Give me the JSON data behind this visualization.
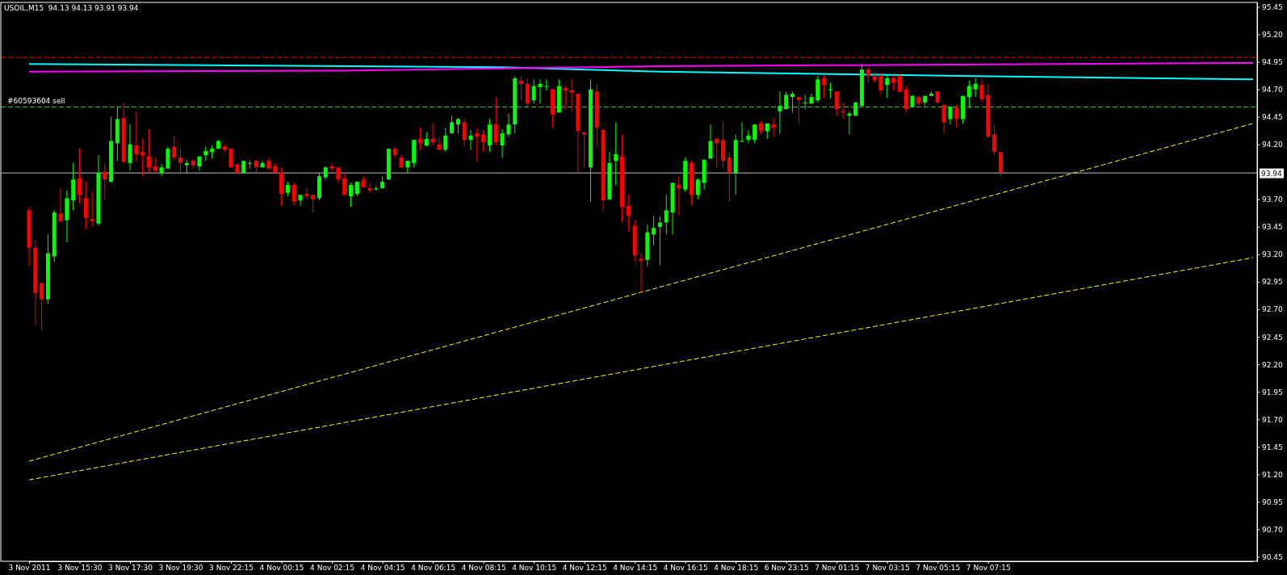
{
  "chart_data": {
    "type": "candlestick",
    "title": "USOIL,M15  94.13 94.13 93.91 93.94",
    "categories": [
      "3 Nov 2011",
      null,
      null,
      null,
      null,
      null,
      null,
      null,
      "3 Nov 15:30",
      null,
      null,
      null,
      null,
      null,
      null,
      null,
      "3 Nov 17:30",
      null,
      null,
      null,
      null,
      null,
      null,
      null,
      "3 Nov 19:30",
      null,
      null,
      null,
      null,
      null,
      null,
      null,
      "3 Nov 22:15",
      null,
      null,
      null,
      null,
      null,
      null,
      null,
      "4 Nov 00:15",
      null,
      null,
      null,
      null,
      null,
      null,
      null,
      "4 Nov 02:15",
      null,
      null,
      null,
      null,
      null,
      null,
      null,
      "4 Nov 04:15",
      null,
      null,
      null,
      null,
      null,
      null,
      null,
      "4 Nov 06:15",
      null,
      null,
      null,
      null,
      null,
      null,
      null,
      "4 Nov 08:15",
      null,
      null,
      null,
      null,
      null,
      null,
      null,
      "4 Nov 10:15",
      null,
      null,
      null,
      null,
      null,
      null,
      null,
      "4 Nov 12:15",
      null,
      null,
      null,
      null,
      null,
      null,
      null,
      "4 Nov 14:15",
      null,
      null,
      null,
      null,
      null,
      null,
      null,
      "4 Nov 16:15",
      null,
      null,
      null,
      null,
      null,
      null,
      null,
      "4 Nov 18:15",
      null,
      null,
      null,
      null,
      null,
      null,
      null,
      "6 Nov 23:15",
      null,
      null,
      null,
      null,
      null,
      null,
      null,
      "7 Nov 01:15",
      null,
      null,
      null,
      null,
      null,
      null,
      null,
      "7 Nov 03:15",
      null,
      null,
      null,
      null,
      null,
      null,
      null,
      "7 Nov 05:15",
      null,
      null,
      null,
      null,
      null,
      null,
      null,
      "7 Nov 07:15",
      null,
      null,
      null,
      null,
      null,
      null,
      null,
      null,
      null,
      null,
      null,
      null,
      null,
      null,
      null,
      null,
      null,
      null,
      null,
      null,
      null,
      null,
      null,
      null,
      null,
      null,
      null,
      null,
      null,
      null,
      null,
      null,
      null,
      null,
      null,
      null,
      null,
      null,
      null,
      null,
      null,
      null
    ],
    "ohlc": [
      [
        93.6,
        93.63,
        93.09,
        93.26
      ],
      [
        93.26,
        93.33,
        92.56,
        92.85
      ],
      [
        92.94,
        92.94,
        92.51,
        92.79
      ],
      [
        92.79,
        93.38,
        92.75,
        93.21
      ],
      [
        93.18,
        93.6,
        93.13,
        93.58
      ],
      [
        93.57,
        93.8,
        93.49,
        93.5
      ],
      [
        93.51,
        93.78,
        93.31,
        93.71
      ],
      [
        93.69,
        94.03,
        93.6,
        93.88
      ],
      [
        93.89,
        94.16,
        93.66,
        93.74
      ],
      [
        93.71,
        93.86,
        93.43,
        93.53
      ],
      [
        93.52,
        93.77,
        93.45,
        93.5
      ],
      [
        93.48,
        94.1,
        93.46,
        93.94
      ],
      [
        93.95,
        94.03,
        93.69,
        93.88
      ],
      [
        93.86,
        94.45,
        93.85,
        94.23
      ],
      [
        94.21,
        94.55,
        94.05,
        94.43
      ],
      [
        94.44,
        94.58,
        94.03,
        94.04
      ],
      [
        94.03,
        94.38,
        93.96,
        94.2
      ],
      [
        94.19,
        94.49,
        94.05,
        94.11
      ],
      [
        94.13,
        94.25,
        93.91,
        94.1
      ],
      [
        94.09,
        94.34,
        93.94,
        93.99
      ],
      [
        94.0,
        94.08,
        93.94,
        93.96
      ],
      [
        93.94,
        94.02,
        93.91,
        93.99
      ],
      [
        93.98,
        94.18,
        93.98,
        94.16
      ],
      [
        94.18,
        94.28,
        94.05,
        94.08
      ],
      [
        94.08,
        94.16,
        93.94,
        94.03
      ],
      [
        94.01,
        94.06,
        93.94,
        94.03
      ],
      [
        94.05,
        94.06,
        93.98,
        94.01
      ],
      [
        94.0,
        94.09,
        93.96,
        94.09
      ],
      [
        94.1,
        94.18,
        94.05,
        94.14
      ],
      [
        94.13,
        94.19,
        94.07,
        94.16
      ],
      [
        94.16,
        94.24,
        94.16,
        94.23
      ],
      [
        94.18,
        94.2,
        94.13,
        94.15
      ],
      [
        94.16,
        94.16,
        93.99,
        93.99
      ],
      [
        94.02,
        94.02,
        93.93,
        93.94
      ],
      [
        93.94,
        94.05,
        93.94,
        94.05
      ],
      [
        94.03,
        94.05,
        93.98,
        94.03
      ],
      [
        94.05,
        94.06,
        93.94,
        93.99
      ],
      [
        93.99,
        94.05,
        93.99,
        94.03
      ],
      [
        94.05,
        94.08,
        93.98,
        93.98
      ],
      [
        94.0,
        94.03,
        93.94,
        93.94
      ],
      [
        93.94,
        93.99,
        93.64,
        93.75
      ],
      [
        93.76,
        93.86,
        93.73,
        93.83
      ],
      [
        93.83,
        93.85,
        93.65,
        93.68
      ],
      [
        93.69,
        93.74,
        93.64,
        93.74
      ],
      [
        93.75,
        93.8,
        93.7,
        93.73
      ],
      [
        93.74,
        93.74,
        93.58,
        93.7
      ],
      [
        93.71,
        93.94,
        93.69,
        93.91
      ],
      [
        93.9,
        94.0,
        93.88,
        93.99
      ],
      [
        94.0,
        94.03,
        93.94,
        93.98
      ],
      [
        93.99,
        93.99,
        93.85,
        93.88
      ],
      [
        93.89,
        93.94,
        93.74,
        93.74
      ],
      [
        93.73,
        93.85,
        93.63,
        93.83
      ],
      [
        93.75,
        93.86,
        93.73,
        93.86
      ],
      [
        93.88,
        93.91,
        93.81,
        93.81
      ],
      [
        93.8,
        93.85,
        93.76,
        93.78
      ],
      [
        93.79,
        93.82,
        93.78,
        93.8
      ],
      [
        93.8,
        93.91,
        93.8,
        93.86
      ],
      [
        93.88,
        94.16,
        93.88,
        94.16
      ],
      [
        94.16,
        94.18,
        94.08,
        94.1
      ],
      [
        94.08,
        94.11,
        93.99,
        93.99
      ],
      [
        93.99,
        94.05,
        93.94,
        94.05
      ],
      [
        94.03,
        94.24,
        93.99,
        94.24
      ],
      [
        94.25,
        94.35,
        94.15,
        94.21
      ],
      [
        94.19,
        94.31,
        94.18,
        94.25
      ],
      [
        94.25,
        94.39,
        94.19,
        94.22
      ],
      [
        94.2,
        94.26,
        94.15,
        94.15
      ],
      [
        94.15,
        94.35,
        94.13,
        94.28
      ],
      [
        94.3,
        94.46,
        94.3,
        94.4
      ],
      [
        94.38,
        94.44,
        94.3,
        94.43
      ],
      [
        94.4,
        94.43,
        94.18,
        94.24
      ],
      [
        94.24,
        94.33,
        94.15,
        94.28
      ],
      [
        94.3,
        94.35,
        94.04,
        94.27
      ],
      [
        94.29,
        94.33,
        94.13,
        94.22
      ],
      [
        94.19,
        94.43,
        94.13,
        94.38
      ],
      [
        94.38,
        94.63,
        94.19,
        94.22
      ],
      [
        94.19,
        94.34,
        94.08,
        94.3
      ],
      [
        94.29,
        94.48,
        94.27,
        94.38
      ],
      [
        94.38,
        94.82,
        94.3,
        94.8
      ],
      [
        94.78,
        94.82,
        94.6,
        94.75
      ],
      [
        94.75,
        94.8,
        94.55,
        94.57
      ],
      [
        94.6,
        94.79,
        94.57,
        94.73
      ],
      [
        94.72,
        94.79,
        94.57,
        94.75
      ],
      [
        94.73,
        94.79,
        94.69,
        94.73
      ],
      [
        94.7,
        94.7,
        94.35,
        94.47
      ],
      [
        94.49,
        94.79,
        94.49,
        94.73
      ],
      [
        94.71,
        94.73,
        94.52,
        94.69
      ],
      [
        94.69,
        94.79,
        94.5,
        94.67
      ],
      [
        94.66,
        94.66,
        93.94,
        94.32
      ],
      [
        94.31,
        94.31,
        93.99,
        94.29
      ],
      [
        93.99,
        94.79,
        93.68,
        94.7
      ],
      [
        94.68,
        94.75,
        94.18,
        94.35
      ],
      [
        94.33,
        94.35,
        93.6,
        93.69
      ],
      [
        93.7,
        94.13,
        93.69,
        94.03
      ],
      [
        94.05,
        94.4,
        93.83,
        94.11
      ],
      [
        94.09,
        94.29,
        93.49,
        93.63
      ],
      [
        93.64,
        93.74,
        93.41,
        93.55
      ],
      [
        93.46,
        93.51,
        93.13,
        93.19
      ],
      [
        93.16,
        93.21,
        92.85,
        93.14
      ],
      [
        93.15,
        93.47,
        93.09,
        93.4
      ],
      [
        93.38,
        93.55,
        93.28,
        93.44
      ],
      [
        93.45,
        93.55,
        93.1,
        93.49
      ],
      [
        93.49,
        93.74,
        93.38,
        93.6
      ],
      [
        93.58,
        93.85,
        93.38,
        93.85
      ],
      [
        93.83,
        93.91,
        93.55,
        93.8
      ],
      [
        93.79,
        94.08,
        93.77,
        94.05
      ],
      [
        94.03,
        94.05,
        93.65,
        93.74
      ],
      [
        93.74,
        93.89,
        93.7,
        93.88
      ],
      [
        93.85,
        94.06,
        93.79,
        94.06
      ],
      [
        94.07,
        94.38,
        94.07,
        94.23
      ],
      [
        94.25,
        94.26,
        93.98,
        94.21
      ],
      [
        94.24,
        94.41,
        93.99,
        94.05
      ],
      [
        94.08,
        94.13,
        93.68,
        93.94
      ],
      [
        93.94,
        94.29,
        93.74,
        94.24
      ],
      [
        94.23,
        94.4,
        94.22,
        94.23
      ],
      [
        94.24,
        94.33,
        94.21,
        94.28
      ],
      [
        94.24,
        94.38,
        94.21,
        94.38
      ],
      [
        94.39,
        94.41,
        94.29,
        94.32
      ],
      [
        94.32,
        94.39,
        94.25,
        94.39
      ],
      [
        94.38,
        94.44,
        94.27,
        94.35
      ],
      [
        94.5,
        94.68,
        94.3,
        94.55
      ],
      [
        94.52,
        94.68,
        94.52,
        94.65
      ],
      [
        94.63,
        94.68,
        94.49,
        94.66
      ],
      [
        94.63,
        94.63,
        94.39,
        94.6
      ],
      [
        94.58,
        94.65,
        94.52,
        94.58
      ],
      [
        94.57,
        94.66,
        94.57,
        94.63
      ],
      [
        94.6,
        94.82,
        94.58,
        94.79
      ],
      [
        94.8,
        94.83,
        94.62,
        94.74
      ],
      [
        94.7,
        94.76,
        94.62,
        94.7
      ],
      [
        94.68,
        94.68,
        94.46,
        94.52
      ],
      [
        94.5,
        94.58,
        94.43,
        94.49
      ],
      [
        94.46,
        94.5,
        94.29,
        94.48
      ],
      [
        94.46,
        94.59,
        94.46,
        94.58
      ],
      [
        94.55,
        94.93,
        94.55,
        94.88
      ],
      [
        94.88,
        94.9,
        94.76,
        94.82
      ],
      [
        94.82,
        94.86,
        94.76,
        94.78
      ],
      [
        94.82,
        94.85,
        94.65,
        94.69
      ],
      [
        94.74,
        94.83,
        94.62,
        94.8
      ],
      [
        94.8,
        94.83,
        94.69,
        94.76
      ],
      [
        94.82,
        94.84,
        94.67,
        94.68
      ],
      [
        94.7,
        94.73,
        94.49,
        94.52
      ],
      [
        94.54,
        94.65,
        94.54,
        94.64
      ],
      [
        94.63,
        94.64,
        94.53,
        94.57
      ],
      [
        94.58,
        94.64,
        94.55,
        94.64
      ],
      [
        94.64,
        94.68,
        94.64,
        94.66
      ],
      [
        94.68,
        94.68,
        94.58,
        94.58
      ],
      [
        94.56,
        94.56,
        94.3,
        94.4
      ],
      [
        94.43,
        94.55,
        94.38,
        94.54
      ],
      [
        94.53,
        94.56,
        94.35,
        94.43
      ],
      [
        94.43,
        94.64,
        94.39,
        94.64
      ],
      [
        94.63,
        94.78,
        94.53,
        94.73
      ],
      [
        94.7,
        94.8,
        94.63,
        94.75
      ],
      [
        94.74,
        94.79,
        94.58,
        94.61
      ],
      [
        94.65,
        94.75,
        94.25,
        94.27
      ],
      [
        94.29,
        94.38,
        94.1,
        94.13
      ],
      [
        94.13,
        94.13,
        93.91,
        93.94
      ],
      null,
      null,
      null,
      null,
      null,
      null,
      null,
      null,
      null,
      null,
      null,
      null,
      null,
      null,
      null,
      null,
      null,
      null,
      null,
      null,
      null,
      null,
      null,
      null,
      null,
      null,
      null,
      null,
      null,
      null,
      null,
      null,
      null,
      null,
      null,
      null,
      null,
      null,
      null,
      null
    ],
    "colors": [
      "#ff0000",
      "#ff0000",
      "#ff0000",
      "#00ff00",
      "#00ff00",
      "#ff0000",
      "#00ff00",
      "#00ff00",
      "#ff0000",
      "#ff0000",
      "#ff0000",
      "#00ff00",
      "#ff0000",
      "#00ff00",
      "#00ff00",
      "#ff0000",
      "#00ff00",
      "#ff0000",
      "#ff0000",
      "#ff0000",
      "#ff0000",
      "#00ff00",
      "#00ff00",
      "#ff0000",
      "#ff0000",
      "#00ff00",
      "#ff0000",
      "#00ff00",
      "#00ff00",
      "#00ff00",
      "#00ff00",
      "#ff0000",
      "#ff0000",
      "#ff0000",
      "#00ff00",
      "#00ff00",
      "#ff0000",
      "#00ff00",
      "#ff0000",
      "#ff0000",
      "#ff0000",
      "#00ff00",
      "#ff0000",
      "#00ff00",
      "#ff0000",
      "#ff0000",
      "#00ff00",
      "#00ff00",
      "#ff0000",
      "#ff0000",
      "#ff0000",
      "#00ff00",
      "#00ff00",
      "#ff0000",
      "#ff0000",
      "#00ff00",
      "#00ff00",
      "#00ff00",
      "#ff0000",
      "#ff0000",
      "#00ff00",
      "#00ff00",
      "#ff0000",
      "#00ff00",
      "#ff0000",
      "#ff0000",
      "#00ff00",
      "#00ff00",
      "#00ff00",
      "#ff0000",
      "#00ff00",
      "#ff0000",
      "#ff0000",
      "#00ff00",
      "#ff0000",
      "#00ff00",
      "#00ff00",
      "#00ff00",
      "#ff0000",
      "#ff0000",
      "#00ff00",
      "#00ff00",
      "#00ff00",
      "#ff0000",
      "#00ff00",
      "#ff0000",
      "#ff0000",
      "#ff0000",
      "#ff0000",
      "#00ff00",
      "#ff0000",
      "#ff0000",
      "#00ff00",
      "#00ff00",
      "#ff0000",
      "#ff0000",
      "#ff0000",
      "#ff0000",
      "#00ff00",
      "#00ff00",
      "#00ff00",
      "#00ff00",
      "#00ff00",
      "#ff0000",
      "#00ff00",
      "#ff0000",
      "#00ff00",
      "#00ff00",
      "#00ff00",
      "#ff0000",
      "#ff0000",
      "#ff0000",
      "#00ff00",
      "#00ff00",
      "#00ff00",
      "#00ff00",
      "#ff0000",
      "#00ff00",
      "#ff0000",
      "#00ff00",
      "#00ff00",
      "#00ff00",
      "#ff0000",
      "#00ff00",
      "#00ff00",
      "#00ff00",
      "#ff0000",
      "#00ff00",
      "#ff0000",
      "#ff0000",
      "#00ff00",
      "#00ff00",
      "#00ff00",
      "#ff0000",
      "#ff0000",
      "#ff0000",
      "#00ff00",
      "#ff0000",
      "#ff0000",
      "#ff0000",
      "#00ff00",
      "#ff0000",
      "#00ff00",
      "#00ff00",
      "#ff0000",
      "#ff0000",
      "#00ff00",
      "#ff0000",
      "#00ff00",
      "#00ff00",
      "#00ff00",
      "#ff0000",
      "#ff0000",
      "#ff0000",
      "#ff0000",
      null,
      null,
      null,
      null,
      null,
      null,
      null,
      null,
      null,
      null,
      null,
      null,
      null,
      null,
      null,
      null,
      null,
      null,
      null,
      null,
      null,
      null,
      null,
      null,
      null,
      null,
      null,
      null,
      null,
      null,
      null,
      null,
      null,
      null,
      null,
      null,
      null,
      null,
      null,
      null
    ],
    "series": [
      {
        "type": "line",
        "color": "#ffff00",
        "line_style": "dashed",
        "values": [
          91.32,
          null,
          null,
          null,
          null,
          null,
          null,
          null,
          null,
          null,
          null,
          null,
          null,
          null,
          null,
          null,
          null,
          null,
          null,
          null,
          null,
          null,
          null,
          null,
          null,
          null,
          null,
          null,
          null,
          null,
          null,
          null,
          null,
          null,
          null,
          null,
          null,
          null,
          null,
          null,
          null,
          null,
          null,
          null,
          null,
          null,
          null,
          null,
          null,
          null,
          null,
          null,
          null,
          null,
          null,
          null,
          null,
          null,
          null,
          null,
          null,
          null,
          null,
          null,
          null,
          null,
          null,
          null,
          null,
          null,
          null,
          null,
          null,
          null,
          null,
          null,
          null,
          null,
          null,
          null,
          null,
          null,
          null,
          null,
          null,
          null,
          null,
          null,
          null,
          null,
          null,
          null,
          null,
          null,
          null,
          null,
          null,
          null,
          null,
          null,
          null,
          null,
          null,
          null,
          null,
          null,
          null,
          null,
          null,
          null,
          null,
          null,
          null,
          null,
          null,
          null,
          null,
          null,
          null,
          null,
          null,
          null,
          null,
          null,
          null,
          null,
          null,
          null,
          null,
          null,
          null,
          null,
          null,
          null,
          null,
          null,
          null,
          null,
          null,
          null,
          null,
          null,
          null,
          null,
          null,
          null,
          null,
          null,
          null,
          null,
          null,
          null,
          null,
          null,
          null,
          null,
          null,
          null,
          null,
          null,
          null,
          null,
          null,
          null,
          null,
          null,
          null,
          null,
          null,
          null,
          null,
          null,
          null,
          null,
          null,
          null,
          null,
          null,
          null,
          null,
          null,
          null,
          null,
          null,
          null,
          null,
          null,
          null,
          null,
          null,
          null,
          null,
          null,
          null,
          94.39
        ]
      },
      {
        "type": "line",
        "color": "#ffff00",
        "line_style": "dashed",
        "values": [
          91.15,
          null,
          null,
          null,
          null,
          null,
          null,
          null,
          null,
          null,
          null,
          null,
          null,
          null,
          null,
          null,
          null,
          null,
          null,
          null,
          null,
          null,
          null,
          null,
          null,
          null,
          null,
          null,
          null,
          null,
          null,
          null,
          null,
          null,
          null,
          null,
          null,
          null,
          null,
          null,
          null,
          null,
          null,
          null,
          null,
          null,
          null,
          null,
          null,
          null,
          null,
          null,
          null,
          null,
          null,
          null,
          null,
          null,
          null,
          null,
          null,
          null,
          null,
          null,
          null,
          null,
          null,
          null,
          null,
          null,
          null,
          null,
          null,
          null,
          null,
          null,
          null,
          null,
          null,
          null,
          null,
          null,
          null,
          null,
          null,
          null,
          null,
          null,
          null,
          null,
          null,
          null,
          null,
          null,
          null,
          null,
          null,
          null,
          null,
          null,
          null,
          null,
          null,
          null,
          null,
          null,
          null,
          null,
          null,
          null,
          null,
          null,
          null,
          null,
          null,
          null,
          null,
          null,
          null,
          null,
          null,
          null,
          null,
          null,
          null,
          null,
          null,
          null,
          null,
          null,
          null,
          null,
          null,
          null,
          null,
          null,
          null,
          null,
          null,
          null,
          null,
          null,
          null,
          null,
          null,
          null,
          null,
          null,
          null,
          null,
          null,
          null,
          null,
          null,
          null,
          null,
          null,
          null,
          null,
          null,
          null,
          null,
          null,
          null,
          null,
          null,
          null,
          null,
          null,
          null,
          null,
          null,
          null,
          null,
          null,
          null,
          null,
          null,
          null,
          null,
          null,
          null,
          null,
          null,
          null,
          null,
          null,
          null,
          null,
          null,
          null,
          null,
          null,
          null,
          93.17
        ]
      },
      {
        "type": "line",
        "color": "#00ffff",
        "line_style": "solid",
        "values": [
          94.93,
          null,
          null,
          null,
          null,
          null,
          null,
          null,
          null,
          null,
          null,
          null,
          null,
          null,
          null,
          null,
          null,
          null,
          null,
          null,
          null,
          null,
          null,
          null,
          null,
          null,
          null,
          null,
          null,
          null,
          null,
          null,
          null,
          null,
          null,
          null,
          null,
          null,
          null,
          null,
          null,
          null,
          null,
          null,
          null,
          null,
          null,
          null,
          null,
          null,
          null,
          null,
          null,
          null,
          null,
          null,
          null,
          null,
          null,
          null,
          null,
          null,
          null,
          null,
          null,
          null,
          null,
          null,
          null,
          null,
          null,
          null,
          null,
          null,
          null,
          94.9,
          null,
          null,
          null,
          null,
          null,
          null,
          null,
          null,
          null,
          null,
          null,
          null,
          null,
          null,
          null,
          null,
          null,
          null,
          null,
          null,
          null,
          null,
          null,
          null,
          94.86,
          null,
          null,
          null,
          null,
          null,
          null,
          null,
          null,
          null,
          null,
          null,
          null,
          null,
          null,
          null,
          null,
          null,
          null,
          null,
          null,
          null,
          null,
          null,
          null,
          null,
          null,
          null,
          null,
          null,
          null,
          null,
          null,
          null,
          null,
          null,
          null,
          null,
          null,
          null,
          null,
          null,
          null,
          null,
          null,
          null,
          null,
          null,
          null,
          null,
          94.82,
          null,
          null,
          null,
          null,
          null,
          null,
          null,
          null,
          null,
          null,
          null,
          null,
          null,
          null,
          null,
          null,
          null,
          null,
          null,
          null,
          null,
          null,
          null,
          null,
          null,
          null,
          null,
          null,
          null,
          null,
          null,
          null,
          null,
          null,
          null,
          null,
          null,
          null,
          null,
          null,
          null,
          null,
          null,
          94.79
        ]
      },
      {
        "type": "line",
        "color": "#ff00ff",
        "line_style": "solid",
        "values": [
          94.86,
          null,
          null,
          null,
          null,
          null,
          null,
          null,
          null,
          null,
          null,
          null,
          null,
          null,
          null,
          null,
          null,
          null,
          null,
          null,
          null,
          null,
          null,
          null,
          null,
          null,
          null,
          null,
          null,
          null,
          null,
          null,
          null,
          null,
          null,
          null,
          null,
          null,
          null,
          null,
          null,
          null,
          null,
          null,
          null,
          null,
          null,
          null,
          null,
          null,
          94.87,
          null,
          null,
          null,
          null,
          null,
          null,
          null,
          null,
          null,
          null,
          null,
          null,
          null,
          null,
          null,
          null,
          null,
          null,
          null,
          null,
          null,
          null,
          null,
          null,
          null,
          null,
          null,
          null,
          null,
          null,
          null,
          null,
          null,
          null,
          null,
          null,
          null,
          null,
          null,
          null,
          null,
          null,
          null,
          null,
          null,
          null,
          null,
          null,
          null,
          94.91,
          null,
          null,
          null,
          null,
          null,
          null,
          null,
          null,
          null,
          null,
          null,
          null,
          null,
          null,
          null,
          null,
          null,
          null,
          null,
          null,
          null,
          null,
          null,
          null,
          null,
          null,
          null,
          null,
          null,
          94.92,
          null,
          null,
          null,
          null,
          null,
          null,
          null,
          null,
          null,
          null,
          null,
          null,
          null,
          null,
          null,
          null,
          null,
          null,
          null,
          null,
          null,
          null,
          null,
          null,
          null,
          null,
          null,
          null,
          null,
          null,
          null,
          null,
          null,
          null,
          null,
          null,
          null,
          null,
          null,
          null,
          null,
          null,
          null,
          null,
          null,
          null,
          null,
          null,
          null,
          null,
          null,
          null,
          null,
          null,
          null,
          null,
          null,
          null,
          null,
          null,
          null,
          null,
          null,
          94.94
        ]
      }
    ],
    "ref_lines": [
      {
        "axis": "y",
        "value": 94.99,
        "color": "#ff0000",
        "line_style": "dashed"
      },
      {
        "axis": "y",
        "value": 94.54,
        "label": "#60593604 sell",
        "color": "#32cd32",
        "line_style": "dashed"
      },
      {
        "axis": "y",
        "value": 93.94,
        "label": "93.94",
        "color": "#c0c0c0",
        "line_style": "solid"
      }
    ],
    "ylim": [
      90.41,
      95.49
    ],
    "yticks": [
      95.45,
      {
        "value": 95.2,
        "label": "95.20"
      },
      94.95,
      {
        "value": 94.7,
        "label": "94.70"
      },
      94.45,
      {
        "value": 94.2,
        "label": "94.20"
      },
      {
        "value": 93.7,
        "label": "93.70"
      },
      93.45,
      {
        "value": 93.2,
        "label": "93.20"
      },
      92.95,
      {
        "value": 92.7,
        "label": "92.70"
      },
      92.45,
      {
        "value": 92.2,
        "label": "92.20"
      },
      91.95,
      {
        "value": 91.7,
        "label": "91.70"
      },
      91.45,
      {
        "value": 91.2,
        "label": "91.20"
      },
      90.95,
      {
        "value": 90.7,
        "label": "90.70"
      },
      90.45
    ],
    "grid": false
  }
}
